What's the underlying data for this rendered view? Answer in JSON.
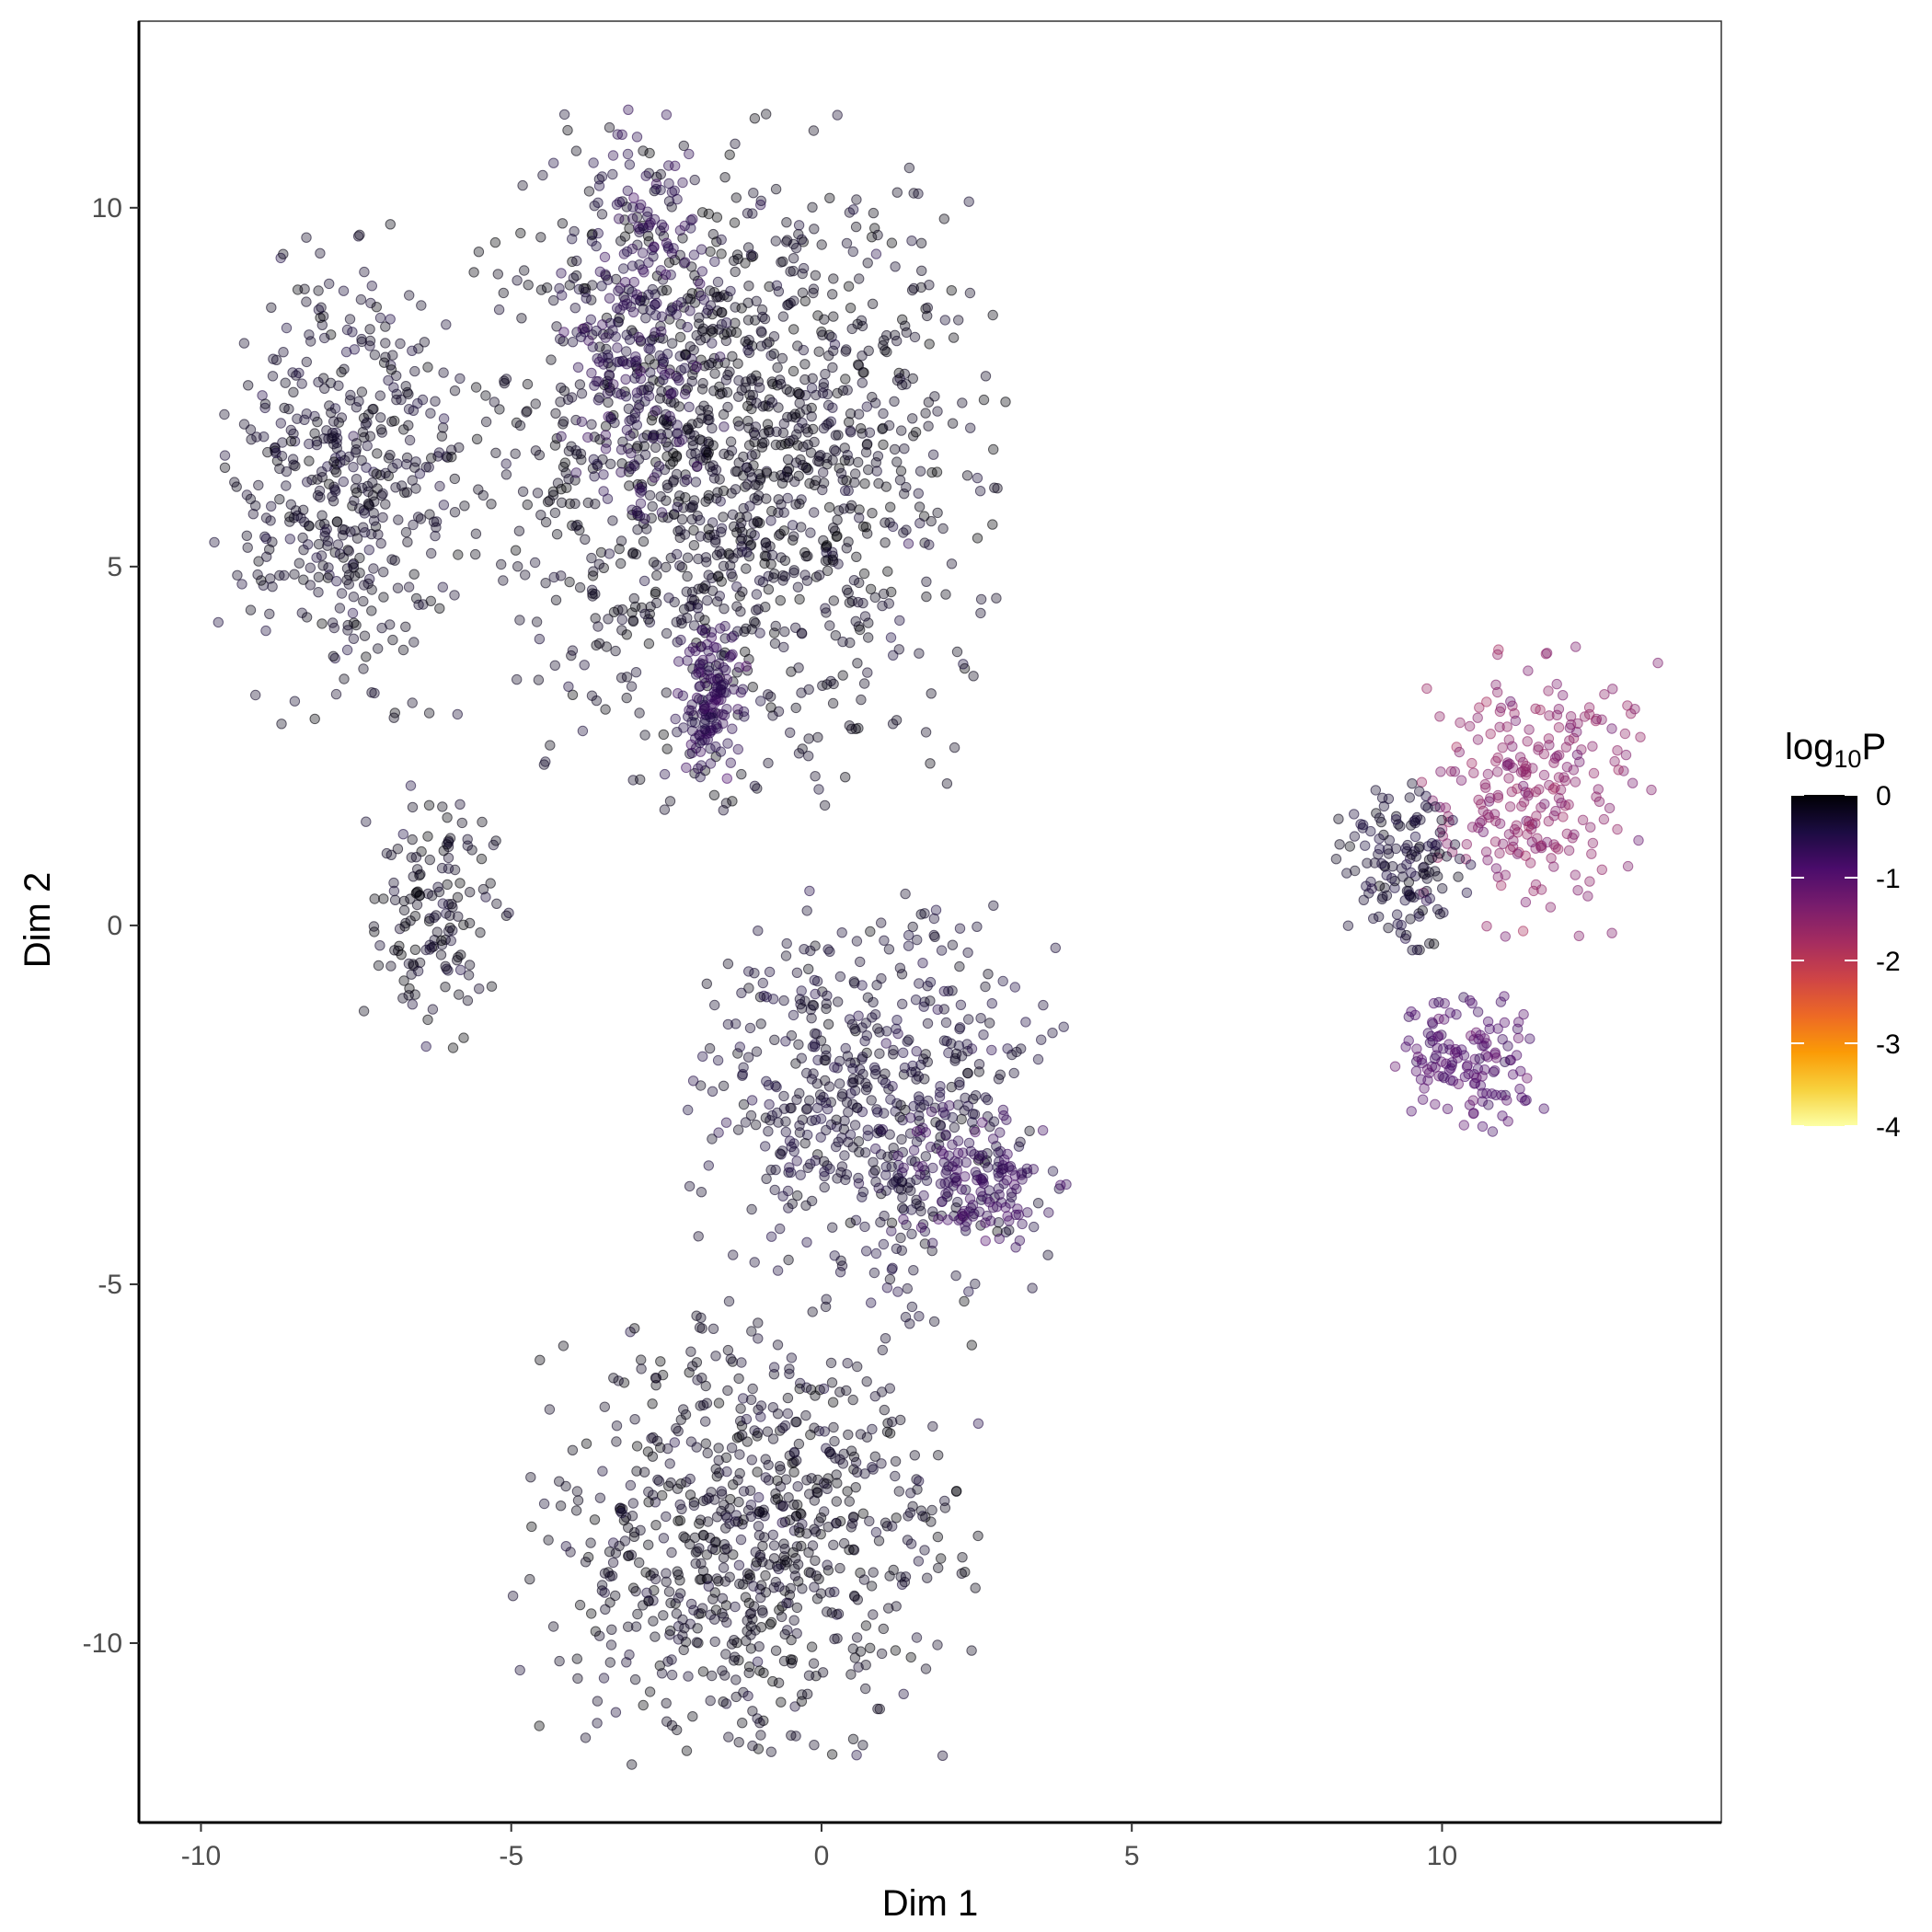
{
  "chart_data": {
    "type": "scatter",
    "title": "",
    "xlabel": "Dim 1",
    "ylabel": "Dim 2",
    "xlim": [
      -11.0,
      14.5
    ],
    "ylim": [
      -12.5,
      12.6
    ],
    "x_ticks": [
      -10,
      -5,
      0,
      5,
      10
    ],
    "x_tick_labels": [
      "-10",
      "-5",
      "0",
      "5",
      "10"
    ],
    "y_ticks": [
      -10,
      -5,
      0,
      5,
      10
    ],
    "y_tick_labels": [
      "-10",
      "-5",
      "0",
      "5",
      "10"
    ],
    "grid": false,
    "legend": {
      "position": "right",
      "title": "log",
      "title_subscript": "10",
      "title_suffix": "P",
      "type": "colorbar",
      "range": [
        -4,
        0
      ],
      "ticks": [
        0,
        -1,
        -2,
        -3,
        -4
      ],
      "tick_labels": [
        "0",
        "-1",
        "-2",
        "-3",
        "-4"
      ],
      "palette": [
        "#fcffa4",
        "#f7d13d",
        "#fb9b06",
        "#ed6925",
        "#cf4446",
        "#a52c60",
        "#781c6d",
        "#4a0c6b",
        "#1b0c41",
        "#000004"
      ]
    },
    "point_opacity": 0.35,
    "clusters": [
      {
        "region": "upper-left large cluster",
        "x_range": [
          -5.8,
          3.0
        ],
        "y_range": [
          1.6,
          11.4
        ],
        "log10P": -0.15
      },
      {
        "region": "upper-left purple band",
        "x_range": [
          -4.5,
          -1.5
        ],
        "y_range": [
          5.5,
          11.4
        ],
        "log10P": -0.55
      },
      {
        "region": "upper-left purple lower patch",
        "x_range": [
          -2.4,
          -1.2
        ],
        "y_range": [
          2.0,
          4.2
        ],
        "log10P": -0.6
      },
      {
        "region": "left arc",
        "x_range": [
          -9.8,
          -5.5
        ],
        "y_range": [
          2.8,
          9.8
        ],
        "log10P": -0.2
      },
      {
        "region": "left small clusters",
        "x_range": [
          -7.5,
          -5.0
        ],
        "y_range": [
          -1.8,
          2.0
        ],
        "log10P": -0.15
      },
      {
        "region": "center middle cluster",
        "x_range": [
          -2.2,
          4.0
        ],
        "y_range": [
          -5.6,
          0.5
        ],
        "log10P": -0.3
      },
      {
        "region": "center middle purple lobe",
        "x_range": [
          1.0,
          4.0
        ],
        "y_range": [
          -4.8,
          -2.2
        ],
        "log10P": -0.7
      },
      {
        "region": "bottom large cluster",
        "x_range": [
          -5.0,
          2.6
        ],
        "y_range": [
          -11.7,
          -5.2
        ],
        "log10P": -0.15
      },
      {
        "region": "right cluster magenta",
        "x_range": [
          9.5,
          13.5
        ],
        "y_range": [
          -0.2,
          3.9
        ],
        "log10P": -1.5
      },
      {
        "region": "right cluster dark",
        "x_range": [
          8.2,
          10.5
        ],
        "y_range": [
          -0.4,
          2.0
        ],
        "log10P": -0.3
      },
      {
        "region": "right cluster lower purple",
        "x_range": [
          9.0,
          11.8
        ],
        "y_range": [
          -2.9,
          -0.8
        ],
        "log10P": -0.9
      }
    ]
  }
}
